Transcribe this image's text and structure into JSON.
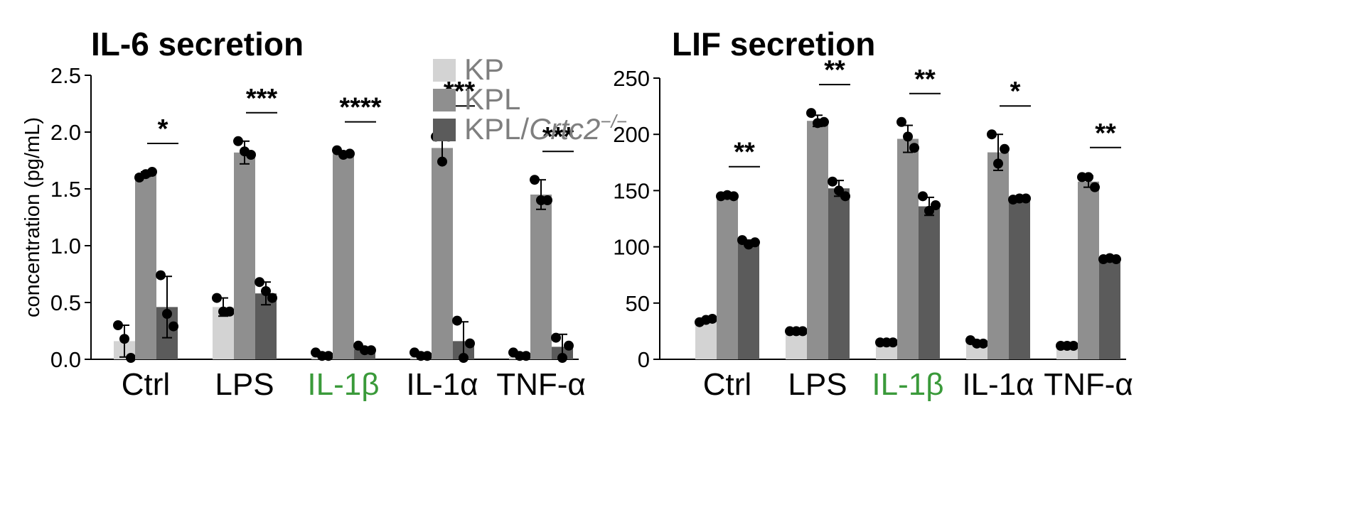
{
  "legend": {
    "items": [
      {
        "series_index": 0,
        "label": "KP",
        "color": "#d3d3d3"
      },
      {
        "series_index": 1,
        "label": "KPL",
        "color": "#8f8f8f"
      },
      {
        "series_index": 2,
        "label_main": "KPL/",
        "label_gene": "Crtc2",
        "label_sup": "−/−",
        "color": "#5b5b5b"
      }
    ]
  },
  "chart_data": [
    {
      "type": "bar",
      "title": "IL-6 secretion",
      "ylabel": "concentration (pg/mL)",
      "ylim": [
        0,
        2.5
      ],
      "yticks": [
        "0.0",
        "0.5",
        "1.0",
        "1.5",
        "2.0",
        "2.5"
      ],
      "categories": [
        {
          "label": "Ctrl",
          "color": "#000000"
        },
        {
          "label": "LPS",
          "color": "#000000"
        },
        {
          "label": "IL-1β",
          "color": "#3a9a3a"
        },
        {
          "label": "IL-1α",
          "color": "#000000"
        },
        {
          "label": "TNF-α",
          "color": "#000000"
        }
      ],
      "series": [
        {
          "name": "KP",
          "color": "#d3d3d3",
          "values": [
            0.16,
            0.46,
            0.02,
            0.02,
            0.02
          ],
          "errors": [
            0.14,
            0.08,
            0.0,
            0.0,
            0.0
          ],
          "points": [
            [
              0.3,
              0.18,
              0.0
            ],
            [
              0.54,
              0.42,
              0.42
            ],
            [
              0.06,
              0.03,
              0.03
            ],
            [
              0.06,
              0.03,
              0.03
            ],
            [
              0.06,
              0.03,
              0.03
            ]
          ]
        },
        {
          "name": "KPL",
          "color": "#8f8f8f",
          "values": [
            1.63,
            1.82,
            1.81,
            1.86,
            1.45
          ],
          "errors": [
            0.02,
            0.1,
            0.0,
            0.12,
            0.13
          ],
          "points": [
            [
              1.6,
              1.63,
              1.65
            ],
            [
              1.92,
              1.83,
              1.8
            ],
            [
              1.84,
              1.8,
              1.81
            ],
            [
              1.96,
              1.74,
              1.96
            ],
            [
              1.58,
              1.4,
              1.4
            ]
          ]
        },
        {
          "name": "KPL/Crtc2−/−",
          "color": "#5b5b5b",
          "values": [
            0.46,
            0.58,
            0.09,
            0.16,
            0.11
          ],
          "errors": [
            0.27,
            0.1,
            0.0,
            0.17,
            0.11
          ],
          "points": [
            [
              0.74,
              0.4,
              0.29
            ],
            [
              0.68,
              0.6,
              0.54
            ],
            [
              0.12,
              0.08,
              0.08
            ],
            [
              0.34,
              0.0,
              0.14
            ],
            [
              0.19,
              0.0,
              0.12
            ]
          ]
        }
      ],
      "significance": [
        "*",
        "***",
        "****",
        "***",
        "***"
      ]
    },
    {
      "type": "bar",
      "title": "LIF secretion",
      "ylabel": "",
      "ylim": [
        0,
        250
      ],
      "yticks": [
        "0",
        "50",
        "100",
        "150",
        "200",
        "250"
      ],
      "categories": [
        {
          "label": "Ctrl",
          "color": "#000000"
        },
        {
          "label": "LPS",
          "color": "#000000"
        },
        {
          "label": "IL-1β",
          "color": "#3a9a3a"
        },
        {
          "label": "IL-1α",
          "color": "#000000"
        },
        {
          "label": "TNF-α",
          "color": "#000000"
        }
      ],
      "series": [
        {
          "name": "KP",
          "color": "#d3d3d3",
          "values": [
            35,
            25,
            15,
            15,
            12
          ],
          "errors": [
            0,
            0,
            0,
            0,
            0
          ],
          "points": [
            [
              33,
              35,
              36
            ],
            [
              25,
              25,
              25
            ],
            [
              15,
              15,
              15
            ],
            [
              17,
              14,
              14
            ],
            [
              12,
              12,
              12
            ]
          ]
        },
        {
          "name": "KPL",
          "color": "#8f8f8f",
          "values": [
            145,
            212,
            196,
            184,
            158
          ],
          "errors": [
            1,
            5,
            12,
            16,
            5
          ],
          "points": [
            [
              145,
              146,
              145
            ],
            [
              219,
              210,
              211
            ],
            [
              211,
              198,
              188
            ],
            [
              200,
              174,
              187
            ],
            [
              162,
              162,
              153
            ]
          ]
        },
        {
          "name": "KPL/Crtc2−/−",
          "color": "#5b5b5b",
          "values": [
            104,
            152,
            136,
            143,
            89
          ],
          "errors": [
            2,
            7,
            8,
            1,
            1
          ],
          "points": [
            [
              106,
              102,
              104
            ],
            [
              158,
              150,
              145
            ],
            [
              145,
              132,
              137
            ],
            [
              142,
              143,
              143
            ],
            [
              89,
              90,
              89
            ]
          ]
        }
      ],
      "significance": [
        "**",
        "**",
        "**",
        "*",
        "**"
      ]
    }
  ]
}
